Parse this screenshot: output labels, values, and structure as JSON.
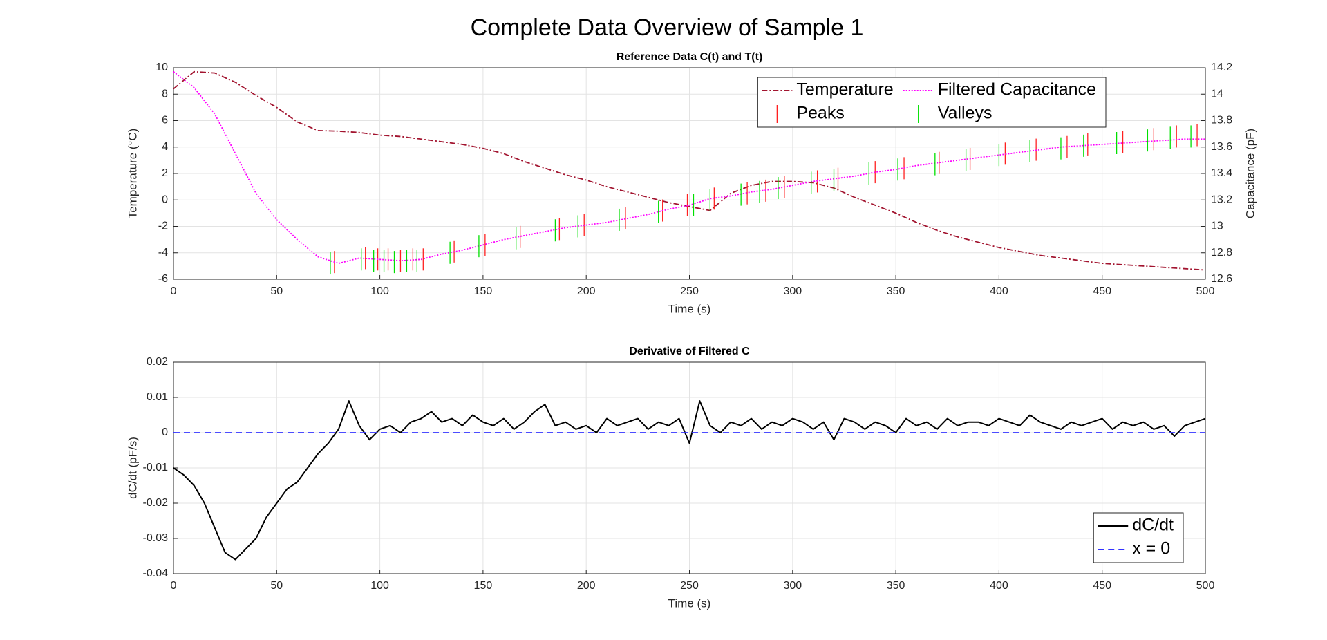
{
  "title": "Complete Data Overview of Sample 1",
  "chart_data": [
    {
      "type": "line",
      "title": "Reference Data C(t) and T(t)",
      "xlabel": "Time (s)",
      "ylabel": "Temperature (°C)",
      "y2label": "Capacitance (pF)",
      "xlim": [
        0,
        500
      ],
      "xticks": [
        0,
        50,
        100,
        150,
        200,
        250,
        300,
        350,
        400,
        450,
        500
      ],
      "ylim": [
        -6,
        10
      ],
      "yticks": [
        -6,
        -4,
        -2,
        0,
        2,
        4,
        6,
        8,
        10
      ],
      "y2lim": [
        12.6,
        14.2
      ],
      "y2ticks": [
        12.6,
        12.8,
        13,
        13.2,
        13.4,
        13.6,
        13.8,
        14,
        14.2
      ],
      "grid": true,
      "legend": "northeast",
      "legend_columns": 2,
      "x": [
        0,
        10,
        20,
        30,
        40,
        50,
        60,
        70,
        80,
        90,
        100,
        110,
        120,
        130,
        140,
        150,
        160,
        170,
        180,
        190,
        200,
        210,
        220,
        230,
        240,
        250,
        260,
        270,
        280,
        290,
        300,
        310,
        320,
        330,
        340,
        350,
        360,
        370,
        380,
        390,
        400,
        410,
        420,
        430,
        440,
        450,
        460,
        470,
        480,
        490,
        500
      ],
      "series": [
        {
          "name": "Temperature",
          "color": "#a2142f",
          "dash": "dashdot",
          "values": [
            8.4,
            9.7,
            9.6,
            8.9,
            7.9,
            7.0,
            5.9,
            5.25,
            5.2,
            5.1,
            4.9,
            4.8,
            4.6,
            4.4,
            4.2,
            3.9,
            3.5,
            2.9,
            2.4,
            1.9,
            1.5,
            1.0,
            0.6,
            0.2,
            -0.2,
            -0.5,
            -0.8,
            0.5,
            1.1,
            1.4,
            1.4,
            1.3,
            0.9,
            0.2,
            -0.4,
            -1.0,
            -1.7,
            -2.3,
            -2.8,
            -3.2,
            -3.6,
            -3.9,
            -4.2,
            -4.4,
            -4.6,
            -4.8,
            -4.9,
            -5.0,
            -5.1,
            -5.2,
            -5.3
          ]
        },
        {
          "name": "Peaks",
          "color": "#ff2020",
          "style": "ticks",
          "axis": "y2",
          "x": [
            78,
            93,
            99,
            104,
            110,
            116,
            121,
            136,
            151,
            168,
            187,
            199,
            219,
            237,
            249,
            262,
            278,
            287,
            296,
            312,
            322,
            340,
            354,
            371,
            386,
            403,
            418,
            433,
            443,
            460,
            475,
            486,
            496
          ],
          "values": [
            12.73,
            12.76,
            12.75,
            12.75,
            12.74,
            12.75,
            12.75,
            12.81,
            12.86,
            12.92,
            12.98,
            13.01,
            13.06,
            13.12,
            13.16,
            13.21,
            13.25,
            13.27,
            13.3,
            13.34,
            13.36,
            13.41,
            13.44,
            13.48,
            13.51,
            13.55,
            13.58,
            13.6,
            13.62,
            13.64,
            13.66,
            13.68,
            13.69
          ]
        },
        {
          "name": "Filtered Capacitance",
          "color": "#ff00ff",
          "dash": "dotted",
          "axis": "y2",
          "values": [
            14.17,
            14.05,
            13.85,
            13.55,
            13.25,
            13.05,
            12.9,
            12.77,
            12.72,
            12.76,
            12.75,
            12.74,
            12.75,
            12.79,
            12.82,
            12.86,
            12.9,
            12.93,
            12.96,
            12.99,
            13.01,
            13.03,
            13.06,
            13.09,
            13.13,
            13.16,
            13.21,
            13.23,
            13.26,
            13.28,
            13.31,
            13.34,
            13.36,
            13.38,
            13.41,
            13.43,
            13.46,
            13.48,
            13.5,
            13.52,
            13.54,
            13.56,
            13.58,
            13.6,
            13.61,
            13.62,
            13.63,
            13.64,
            13.65,
            13.66,
            13.66
          ]
        },
        {
          "name": "Valleys",
          "color": "#00e000",
          "style": "ticks",
          "axis": "y2",
          "x": [
            76,
            91,
            97,
            102,
            107,
            113,
            118,
            134,
            148,
            166,
            185,
            196,
            216,
            235,
            252,
            260,
            275,
            284,
            293,
            309,
            320,
            337,
            351,
            369,
            384,
            400,
            415,
            430,
            441,
            457,
            472,
            483,
            493
          ],
          "values": [
            12.72,
            12.75,
            12.74,
            12.74,
            12.73,
            12.74,
            12.74,
            12.8,
            12.85,
            12.91,
            12.97,
            13.0,
            13.05,
            13.11,
            13.16,
            13.2,
            13.24,
            13.26,
            13.29,
            13.33,
            13.35,
            13.4,
            13.43,
            13.47,
            13.5,
            13.54,
            13.57,
            13.59,
            13.61,
            13.63,
            13.65,
            13.67,
            13.68
          ]
        }
      ]
    },
    {
      "type": "line",
      "title": "Derivative of Filtered C",
      "xlabel": "Time (s)",
      "ylabel": "dC/dt (pF/s)",
      "xlim": [
        0,
        500
      ],
      "xticks": [
        0,
        50,
        100,
        150,
        200,
        250,
        300,
        350,
        400,
        450,
        500
      ],
      "ylim": [
        -0.04,
        0.02
      ],
      "yticks": [
        -0.04,
        -0.03,
        -0.02,
        -0.01,
        0,
        0.01,
        0.02
      ],
      "grid": true,
      "legend": "southeast",
      "legend_columns": 1,
      "x": [
        0,
        5,
        10,
        15,
        20,
        25,
        30,
        35,
        40,
        45,
        50,
        55,
        60,
        65,
        70,
        75,
        80,
        85,
        90,
        95,
        100,
        105,
        110,
        115,
        120,
        125,
        130,
        135,
        140,
        145,
        150,
        155,
        160,
        165,
        170,
        175,
        180,
        185,
        190,
        195,
        200,
        205,
        210,
        215,
        220,
        225,
        230,
        235,
        240,
        245,
        250,
        255,
        260,
        265,
        270,
        275,
        280,
        285,
        290,
        295,
        300,
        305,
        310,
        315,
        320,
        325,
        330,
        335,
        340,
        345,
        350,
        355,
        360,
        365,
        370,
        375,
        380,
        385,
        390,
        395,
        400,
        405,
        410,
        415,
        420,
        425,
        430,
        435,
        440,
        445,
        450,
        455,
        460,
        465,
        470,
        475,
        480,
        485,
        490,
        495,
        500
      ],
      "series": [
        {
          "name": "dC/dt",
          "color": "#000000",
          "values": [
            -0.01,
            -0.012,
            -0.015,
            -0.02,
            -0.027,
            -0.034,
            -0.036,
            -0.033,
            -0.03,
            -0.024,
            -0.02,
            -0.016,
            -0.014,
            -0.01,
            -0.006,
            -0.003,
            0.001,
            0.009,
            0.002,
            -0.002,
            0.001,
            0.002,
            0.0,
            0.003,
            0.004,
            0.006,
            0.003,
            0.004,
            0.002,
            0.005,
            0.003,
            0.002,
            0.004,
            0.001,
            0.003,
            0.006,
            0.008,
            0.002,
            0.003,
            0.001,
            0.002,
            0.0,
            0.004,
            0.002,
            0.003,
            0.004,
            0.001,
            0.003,
            0.002,
            0.004,
            -0.003,
            0.009,
            0.002,
            0.0,
            0.003,
            0.002,
            0.004,
            0.001,
            0.003,
            0.002,
            0.004,
            0.003,
            0.001,
            0.003,
            -0.002,
            0.004,
            0.003,
            0.001,
            0.003,
            0.002,
            0.0,
            0.004,
            0.002,
            0.003,
            0.001,
            0.004,
            0.002,
            0.003,
            0.003,
            0.002,
            0.004,
            0.003,
            0.002,
            0.005,
            0.003,
            0.002,
            0.001,
            0.003,
            0.002,
            0.003,
            0.004,
            0.001,
            0.003,
            0.002,
            0.003,
            0.001,
            0.002,
            -0.001,
            0.002,
            0.003,
            0.004
          ]
        },
        {
          "name": "x = 0",
          "color": "#3333ff",
          "dash": "dashed",
          "x": [
            0,
            500
          ],
          "values": [
            0,
            0
          ]
        }
      ]
    }
  ]
}
